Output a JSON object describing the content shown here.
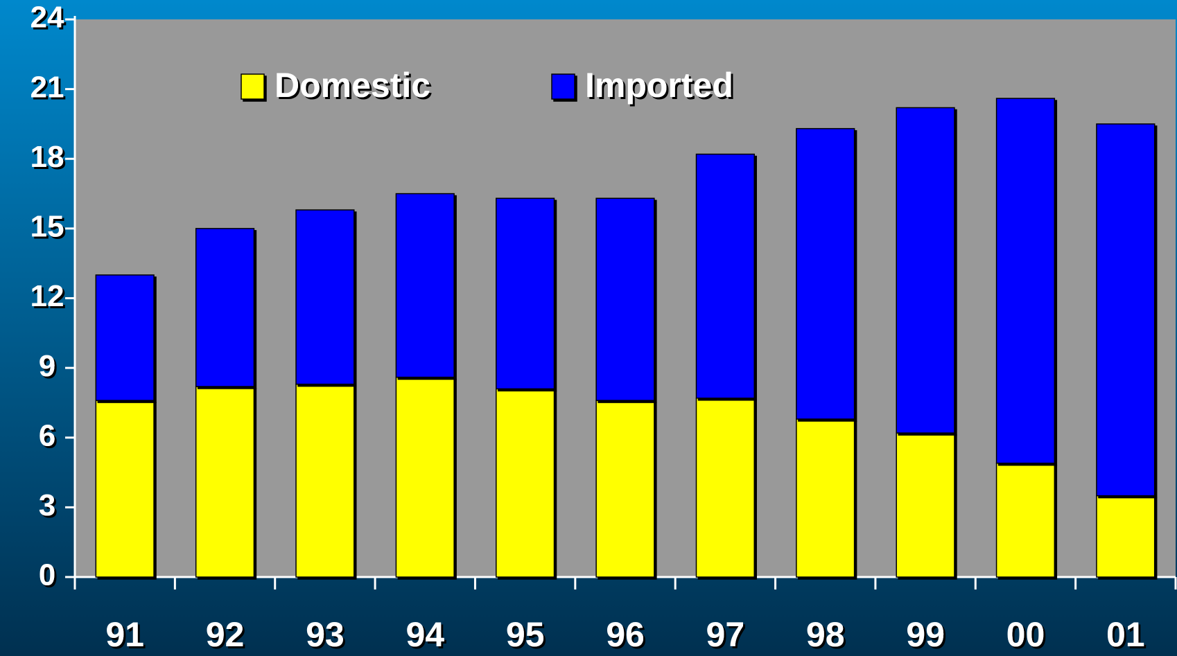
{
  "chart_data": {
    "type": "stacked_bar",
    "categories": [
      "91",
      "92",
      "93",
      "94",
      "95",
      "96",
      "97",
      "98",
      "99",
      "00",
      "01"
    ],
    "series": [
      {
        "name": "Domestic",
        "color": "#ffff00",
        "values": [
          7.6,
          8.2,
          8.3,
          8.6,
          8.1,
          7.6,
          7.7,
          6.8,
          6.2,
          4.9,
          3.5
        ]
      },
      {
        "name": "Imported",
        "color": "#0000ff",
        "values": [
          5.4,
          6.8,
          7.5,
          7.9,
          8.2,
          8.7,
          10.5,
          12.5,
          14.0,
          15.7,
          16.0
        ]
      }
    ],
    "ylim": [
      0,
      24
    ],
    "yticks": [
      0,
      3,
      6,
      9,
      12,
      15,
      18,
      21,
      24
    ],
    "grid": true
  }
}
